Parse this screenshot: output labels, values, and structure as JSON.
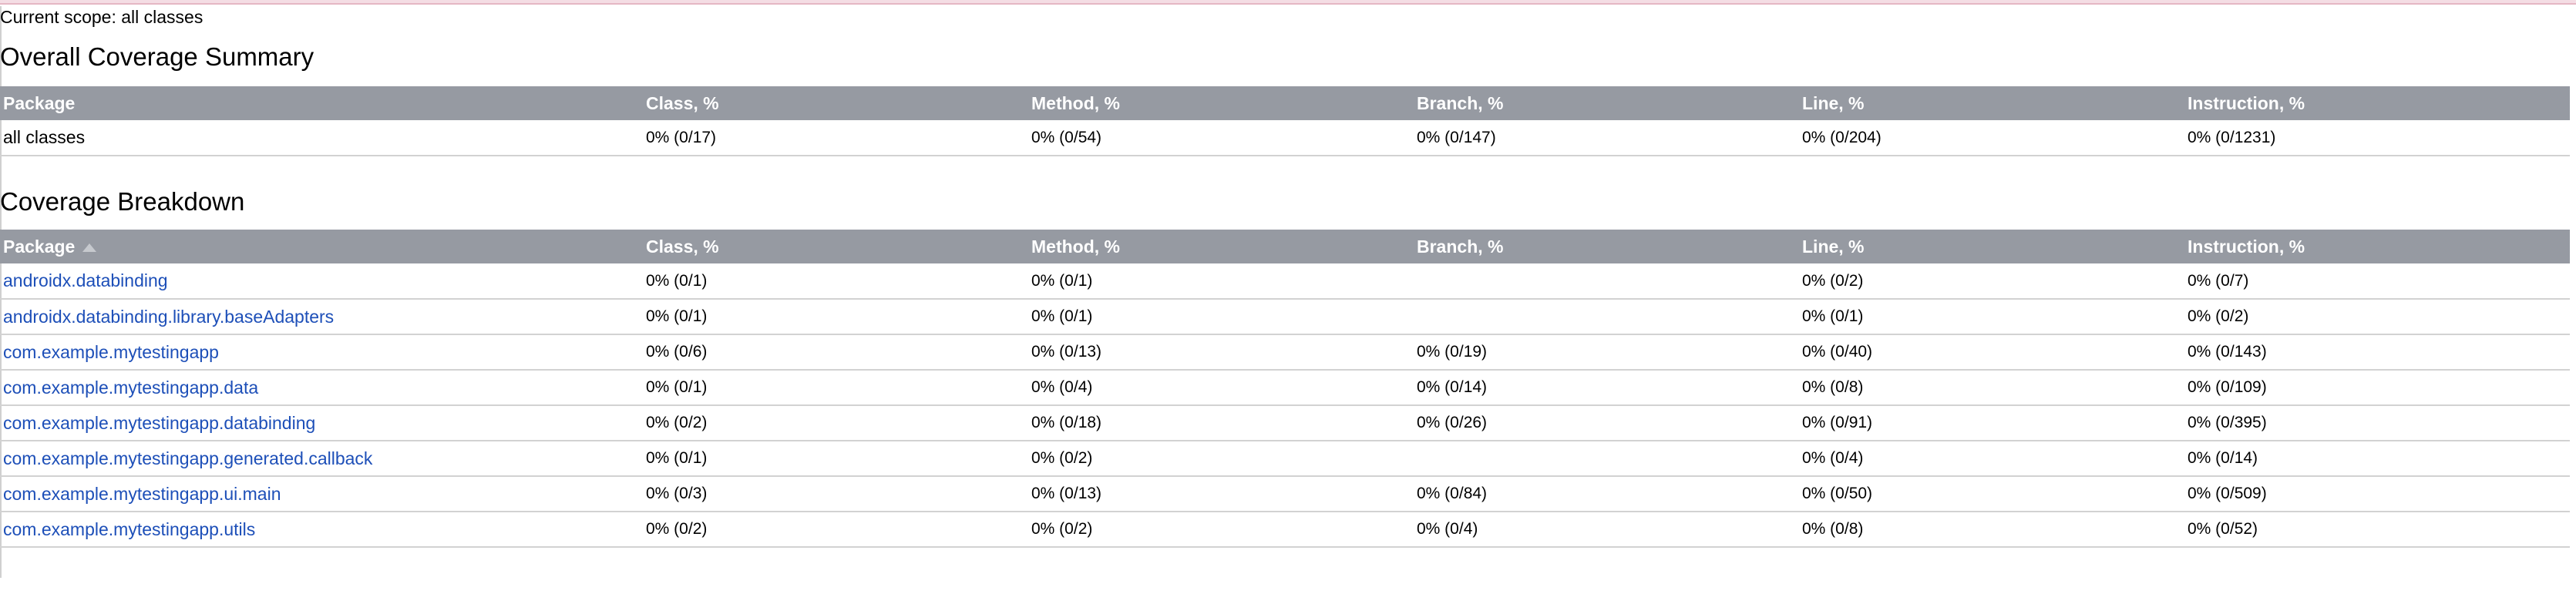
{
  "scope": "Current scope: all classes",
  "summary": {
    "title": "Overall Coverage Summary",
    "headers": [
      "Package",
      "Class, %",
      "Method, %",
      "Branch, %",
      "Line, %",
      "Instruction, %"
    ],
    "row": {
      "name": "all classes",
      "class": "0% (0/17)",
      "method": "0% (0/54)",
      "branch": "0% (0/147)",
      "line": "0% (0/204)",
      "instruction": "0% (0/1231)"
    }
  },
  "breakdown": {
    "title": "Coverage Breakdown",
    "headers": [
      "Package",
      "Class, %",
      "Method, %",
      "Branch, %",
      "Line, %",
      "Instruction, %"
    ],
    "sort_icon": "sort-ascending-icon",
    "rows": [
      {
        "name": "androidx.databinding",
        "class": "0% (0/1)",
        "method": "0% (0/1)",
        "branch": "",
        "line": "0% (0/2)",
        "instruction": "0% (0/7)"
      },
      {
        "name": "androidx.databinding.library.baseAdapters",
        "class": "0% (0/1)",
        "method": "0% (0/1)",
        "branch": "",
        "line": "0% (0/1)",
        "instruction": "0% (0/2)"
      },
      {
        "name": "com.example.mytestingapp",
        "class": "0% (0/6)",
        "method": "0% (0/13)",
        "branch": "0% (0/19)",
        "line": "0% (0/40)",
        "instruction": "0% (0/143)"
      },
      {
        "name": "com.example.mytestingapp.data",
        "class": "0% (0/1)",
        "method": "0% (0/4)",
        "branch": "0% (0/14)",
        "line": "0% (0/8)",
        "instruction": "0% (0/109)"
      },
      {
        "name": "com.example.mytestingapp.databinding",
        "class": "0% (0/2)",
        "method": "0% (0/18)",
        "branch": "0% (0/26)",
        "line": "0% (0/91)",
        "instruction": "0% (0/395)"
      },
      {
        "name": "com.example.mytestingapp.generated.callback",
        "class": "0% (0/1)",
        "method": "0% (0/2)",
        "branch": "",
        "line": "0% (0/4)",
        "instruction": "0% (0/14)"
      },
      {
        "name": "com.example.mytestingapp.ui.main",
        "class": "0% (0/3)",
        "method": "0% (0/13)",
        "branch": "0% (0/84)",
        "line": "0% (0/50)",
        "instruction": "0% (0/509)"
      },
      {
        "name": "com.example.mytestingapp.utils",
        "class": "0% (0/2)",
        "method": "0% (0/2)",
        "branch": "0% (0/4)",
        "line": "0% (0/8)",
        "instruction": "0% (0/52)"
      }
    ]
  }
}
